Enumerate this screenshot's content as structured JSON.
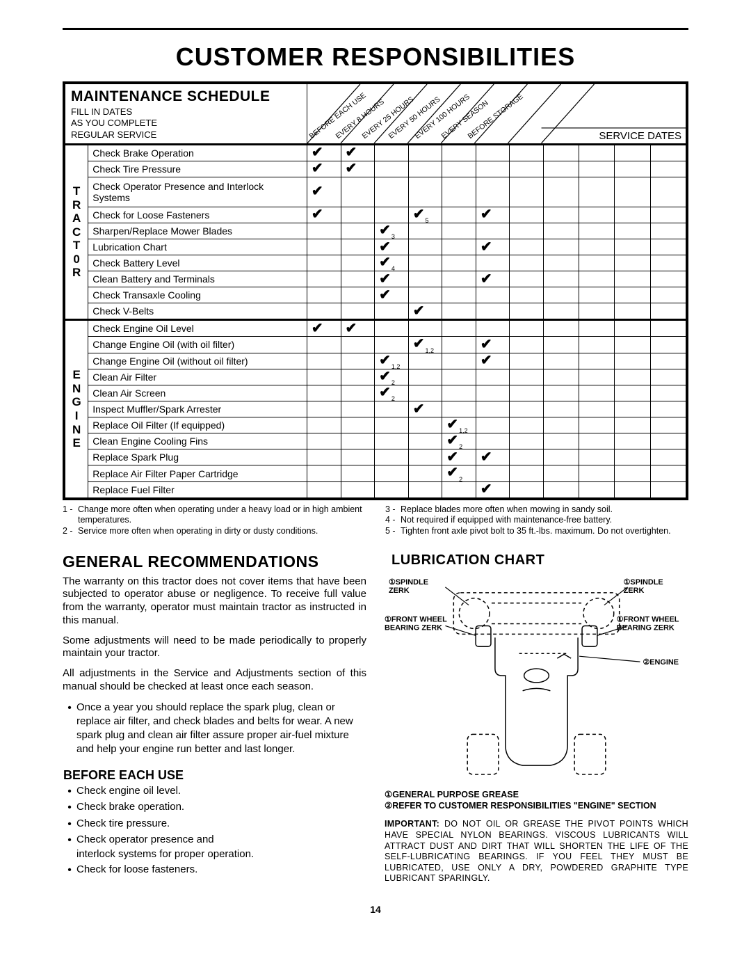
{
  "page_title": "CUSTOMER RESPONSIBILITIES",
  "schedule": {
    "header_title": "MAINTENANCE SCHEDULE",
    "header_sub": "FILL IN DATES\nAS YOU COMPLETE\nREGULAR SERVICE",
    "intervals": [
      "BEFORE EACH USE",
      "EVERY 8 HOURS",
      "EVERY 25 HOURS",
      "EVERY 50 HOURS",
      "EVERY 100 HOURS",
      "EVERY SEASON",
      "BEFORE STORAGE"
    ],
    "service_dates_label": "SERVICE DATES",
    "groups": [
      {
        "category_letters": [
          "T",
          "R",
          "A",
          "C",
          "T",
          "0",
          "R"
        ],
        "rows": [
          {
            "task": "Check Brake Operation",
            "marks": {
              "0": "",
              "1": ""
            }
          },
          {
            "task": "Check Tire Pressure",
            "marks": {
              "0": "",
              "1": ""
            }
          },
          {
            "task": "Check Operator Presence and Interlock Systems",
            "marks": {
              "0": ""
            },
            "tall": true
          },
          {
            "task": "Check for Loose Fasteners",
            "marks": {
              "0": "",
              "3": "5",
              "5": ""
            }
          },
          {
            "task": "Sharpen/Replace Mower Blades",
            "marks": {
              "2": "3"
            }
          },
          {
            "task": "Lubrication Chart",
            "marks": {
              "2": "",
              "5": ""
            }
          },
          {
            "task": "Check Battery Level",
            "marks": {
              "2": "4"
            }
          },
          {
            "task": "Clean Battery and Terminals",
            "marks": {
              "2": "",
              "5": ""
            }
          },
          {
            "task": "Check Transaxle Cooling",
            "marks": {
              "2": ""
            }
          },
          {
            "task": "Check V-Belts",
            "marks": {
              "3": ""
            }
          }
        ]
      },
      {
        "category_letters": [
          "E",
          "N",
          "G",
          "I",
          "N",
          "E"
        ],
        "rows": [
          {
            "task": "Check Engine Oil Level",
            "marks": {
              "0": "",
              "1": ""
            }
          },
          {
            "task": "Change Engine Oil (with oil filter)",
            "marks": {
              "3": "1,2",
              "5": ""
            }
          },
          {
            "task": "Change Engine Oil (without oil filter)",
            "marks": {
              "2": "1,2",
              "5": ""
            }
          },
          {
            "task": "Clean Air Filter",
            "marks": {
              "2": "2"
            }
          },
          {
            "task": "Clean Air Screen",
            "marks": {
              "2": "2"
            }
          },
          {
            "task": "Inspect Muffler/Spark Arrester",
            "marks": {
              "3": ""
            }
          },
          {
            "task": "Replace Oil Filter (If equipped)",
            "marks": {
              "4": "1,2"
            }
          },
          {
            "task": "Clean Engine Cooling Fins",
            "marks": {
              "4": "2"
            }
          },
          {
            "task": "Replace Spark Plug",
            "marks": {
              "4": "",
              "5": ""
            }
          },
          {
            "task": "Replace Air Filter Paper Cartridge",
            "marks": {
              "4": "2"
            }
          },
          {
            "task": "Replace Fuel Filter",
            "marks": {
              "5": ""
            }
          }
        ]
      }
    ]
  },
  "footnotes_left": [
    {
      "n": "1 -",
      "t": "Change more often when operating under a heavy load or in high ambient temperatures."
    },
    {
      "n": "2 -",
      "t": "Service more often when operating in dirty or dusty conditions."
    }
  ],
  "footnotes_right": [
    {
      "n": "3 -",
      "t": "Replace blades more often when mowing in sandy soil."
    },
    {
      "n": "4 -",
      "t": "Not required if equipped with maintenance-free battery."
    },
    {
      "n": "5 -",
      "t": "Tighten front axle pivot bolt to 35 ft.-lbs. maximum. Do not overtighten."
    }
  ],
  "general": {
    "heading": "GENERAL  RECOMMENDATIONS",
    "p1": "The warranty on this tractor does not cover items that have been subjected to operator abuse or negligence.  To receive full value from the warranty, operator must maintain tractor as instructed in this manual.",
    "p2": "Some adjustments will need to be made periodically to properly maintain your tractor.",
    "p3": "All adjustments in the Service and Adjustments section of this manual should be checked at least once each season.",
    "bullet": "Once a year you should replace the spark plug, clean or replace air filter, and check blades and belts for wear.  A new spark plug and clean air filter assure proper air-fuel mixture and help your engine run better and last longer."
  },
  "before": {
    "heading": "BEFORE EACH USE",
    "items": [
      "Check engine oil level.",
      "Check brake operation.",
      "Check tire pressure.",
      "Check operator presence and",
      "interlock systems for proper operation.",
      "Check for loose fasteners."
    ]
  },
  "lubrication": {
    "heading": "LUBRICATION  CHART",
    "labels": {
      "spindle": "①SPINDLE\nZERK",
      "wheel": "①FRONT  WHEEL\nBEARING  ZERK",
      "engine": "②ENGINE"
    },
    "key1": "①GENERAL  PURPOSE  GREASE",
    "key2": "②REFER  TO  CUSTOMER  RESPONSIBILITIES  \"ENGINE\" SECTION",
    "important_label": "IMPORTANT:",
    "important": "DO NOT OIL OR GREASE THE PIVOT POINTS WHICH HAVE SPECIAL NYLON BEARINGS.  VISCOUS LUBRICANTS WILL ATTRACT DUST AND DIRT THAT WILL SHORTEN THE LIFE OF THE SELF-LUBRICATING BEARINGS.  IF YOU FEEL THEY MUST BE LUBRICATED, USE ONLY A DRY, POWDERED GRAPHITE TYPE LUBRICANT SPARINGLY."
  },
  "page_number": "14"
}
